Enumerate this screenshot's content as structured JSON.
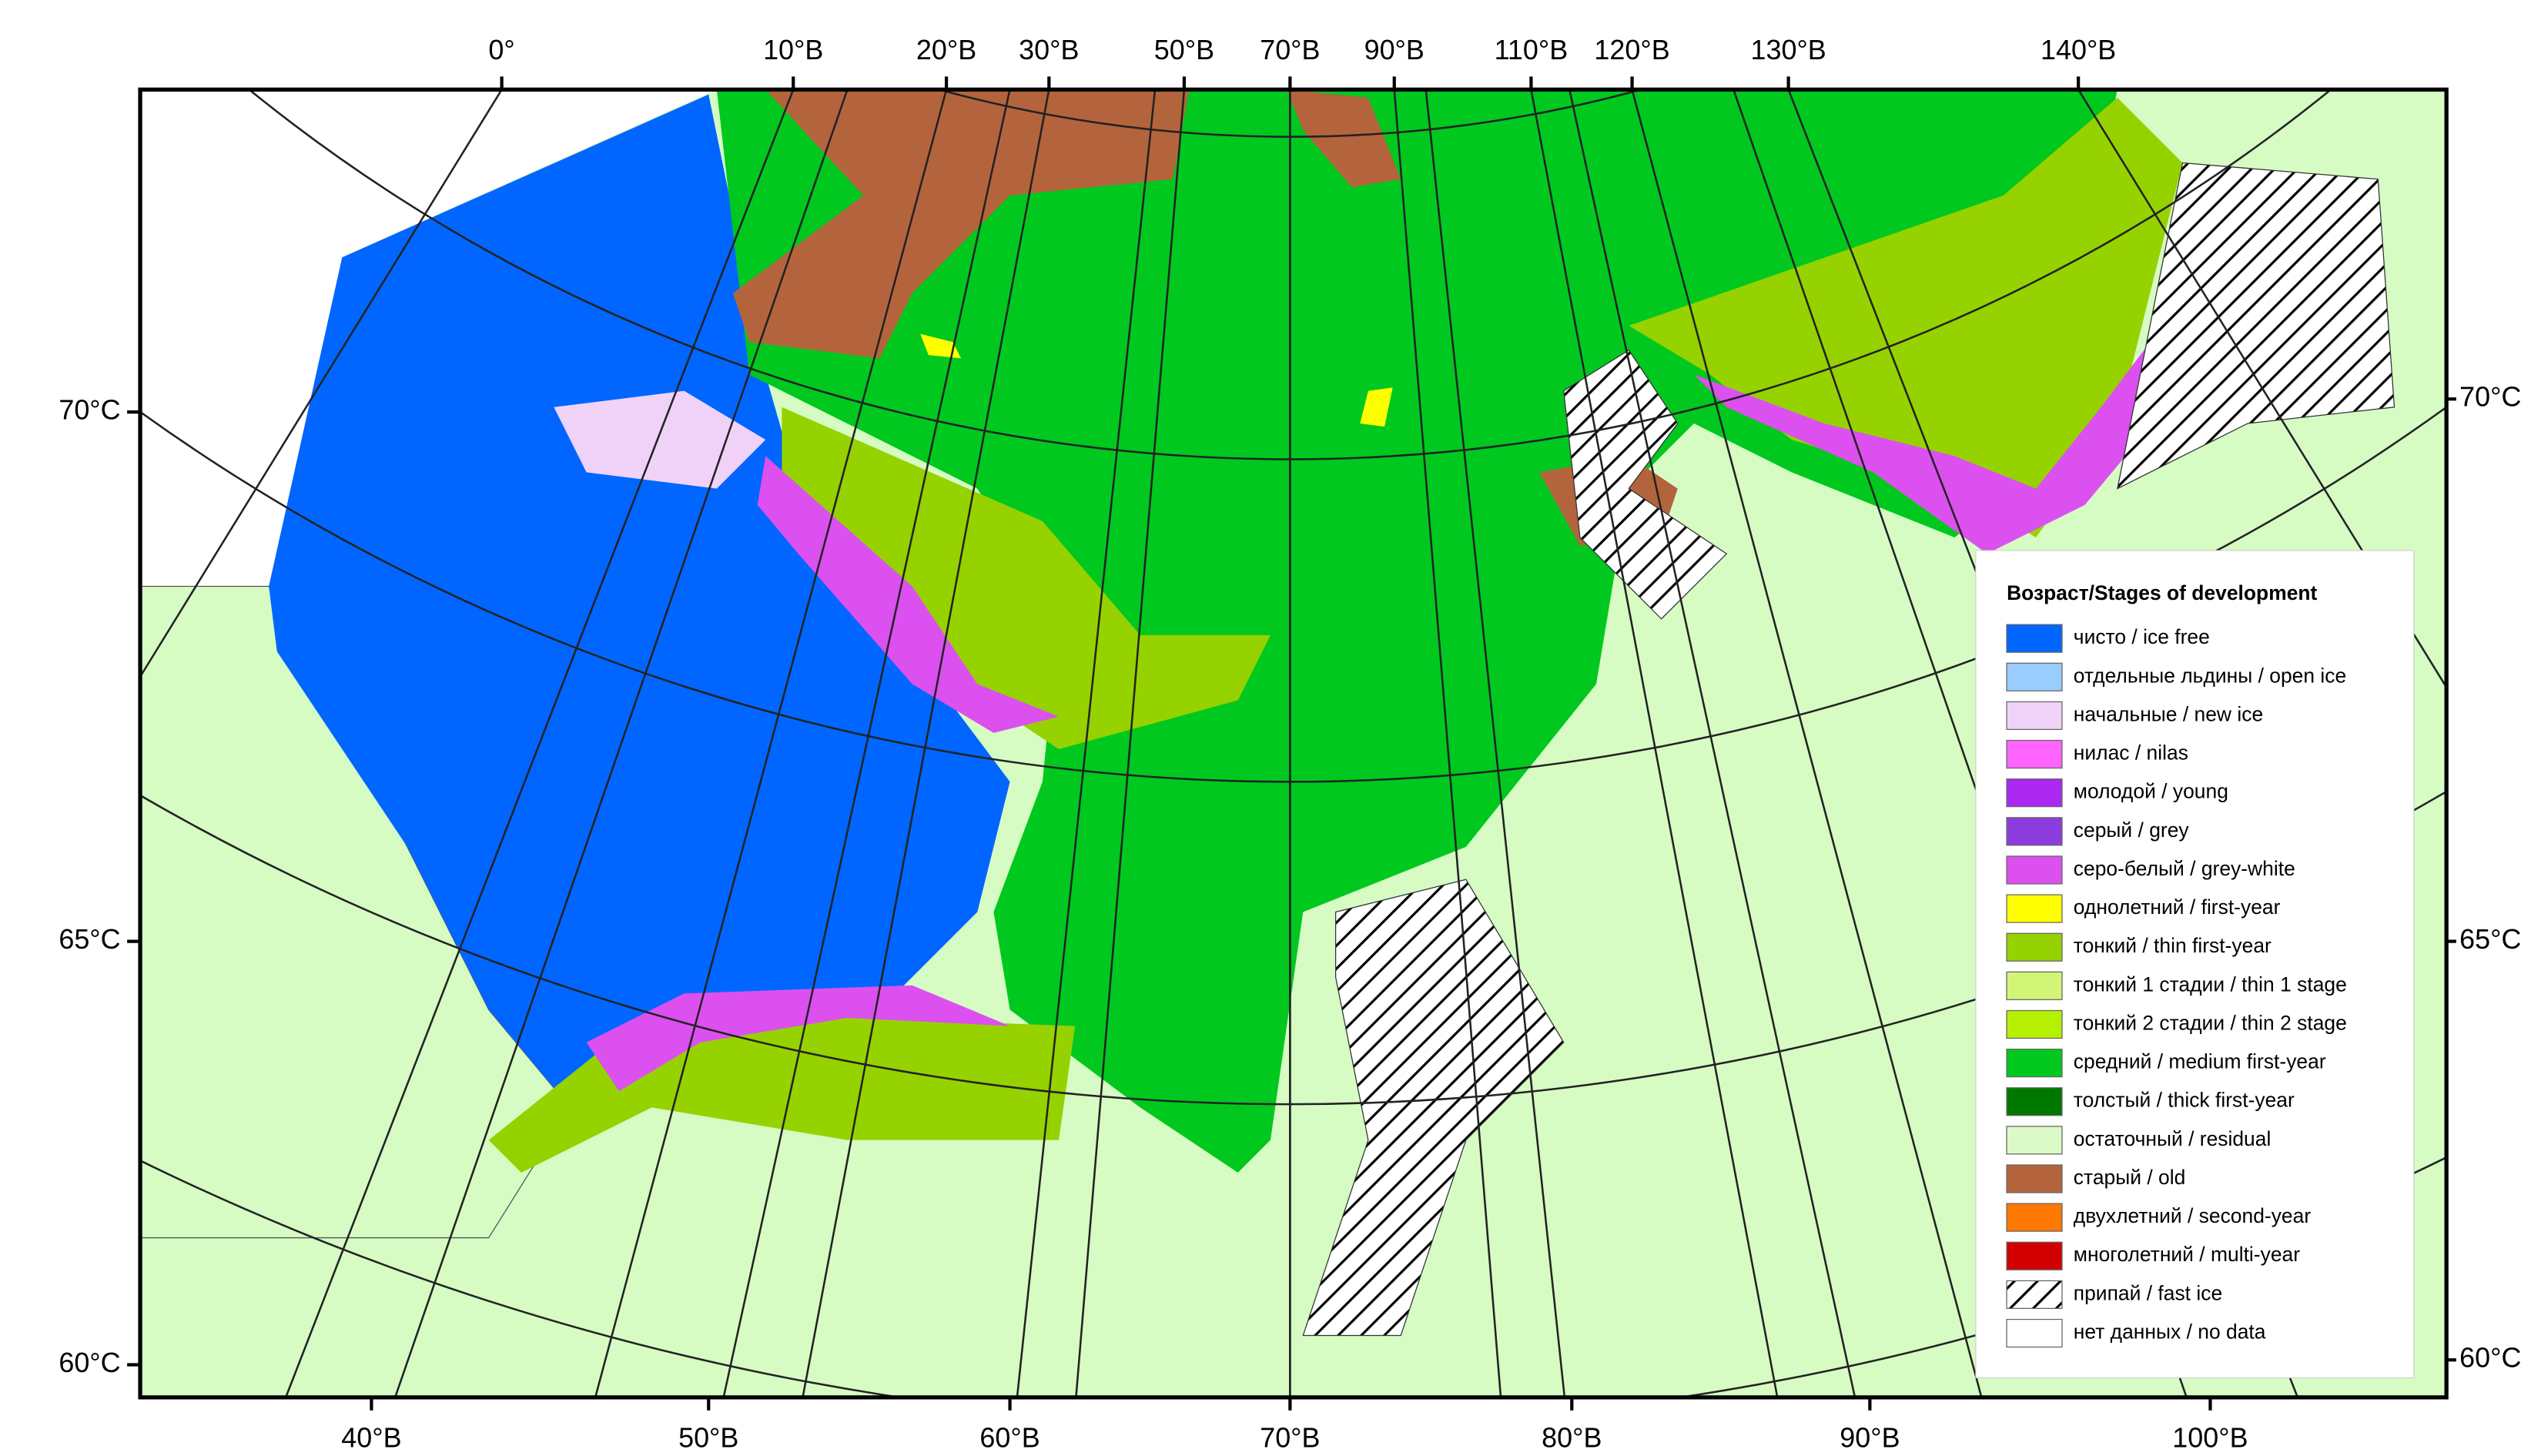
{
  "map": {
    "top_labels": [
      "0°",
      "10°В",
      "20°В",
      "30°В",
      "50°В",
      "70°В",
      "90°В",
      "110°В",
      "120°В",
      "130°В",
      "140°В"
    ],
    "bottom_labels": [
      "40°В",
      "50°В",
      "60°В",
      "70°В",
      "80°В",
      "90°В",
      "100°В"
    ],
    "left_labels": [
      "70°С",
      "65°С",
      "60°С"
    ],
    "right_labels": [
      "70°С",
      "65°С",
      "60°С"
    ]
  },
  "legend": {
    "title": "Возраст/Stages of development",
    "items": [
      {
        "label": "чисто / ice free",
        "color": "#0066ff"
      },
      {
        "label": "отдельные льдины / open ice",
        "color": "#99ccff"
      },
      {
        "label": "начальные / new ice",
        "color": "#f0d2f8"
      },
      {
        "label": "нилас / nilas",
        "color": "#ff64ff"
      },
      {
        "label": "молодой / young",
        "color": "#aa28f0"
      },
      {
        "label": "серый / grey",
        "color": "#8c3cdc"
      },
      {
        "label": "серо-белый / grey-white",
        "color": "#dc50f0"
      },
      {
        "label": "однолетний / first-year",
        "color": "#ffff00"
      },
      {
        "label": "тонкий / thin first-year",
        "color": "#96d200"
      },
      {
        "label": "тонкий 1 стадии / thin 1 stage",
        "color": "#d2f578"
      },
      {
        "label": "тонкий 2 стадии / thin 2 stage",
        "color": "#b4f000"
      },
      {
        "label": "средний / medium first-year",
        "color": "#00c81e"
      },
      {
        "label": "толстый / thick first-year",
        "color": "#007800"
      },
      {
        "label": "остаточный / residual",
        "color": "#dcfac8"
      },
      {
        "label": "старый / old",
        "color": "#b4643c"
      },
      {
        "label": "двухлетний / second-year",
        "color": "#ff7800"
      },
      {
        "label": "многолетний / multi-year",
        "color": "#d20000"
      },
      {
        "label": "припай / fast ice",
        "color": "#ffffff",
        "hatch": true
      },
      {
        "label": "нет данных / no data",
        "color": "#ffffff"
      }
    ]
  }
}
